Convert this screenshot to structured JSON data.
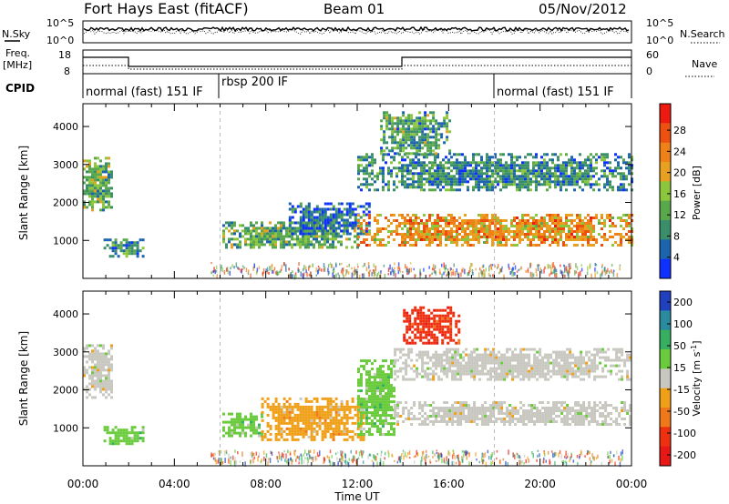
{
  "header": {
    "station": "Fort Hays East (fitACF)",
    "beam": "Beam 01",
    "date": "05/Nov/2012"
  },
  "noise_panel": {
    "left_label": "N.Sky",
    "left_ticks": [
      "10^5",
      "10^0"
    ],
    "right_ticks": [
      "10^5",
      "10^0"
    ],
    "right_label": "N.Search"
  },
  "freq_panel": {
    "left_label_1": "Freq.",
    "left_label_2": "[MHz]",
    "left_ticks": [
      "18",
      "8"
    ],
    "right_ticks": [
      "60",
      "0"
    ],
    "right_label": "Nave"
  },
  "cpid": {
    "label": "CPID",
    "segments": [
      {
        "name": "normal (fast) 151 IF",
        "start_hour": 0,
        "end_hour": 6
      },
      {
        "name": "rbsp 200 IF",
        "start_hour": 6,
        "end_hour": 18
      },
      {
        "name": "normal (fast) 151 IF",
        "start_hour": 18,
        "end_hour": 24
      }
    ]
  },
  "colors": {
    "power_scale": [
      "#1030ff",
      "#1c64ad",
      "#3a8f6a",
      "#5aa84c",
      "#8cc63c",
      "#e8a020",
      "#f08018",
      "#ee5010",
      "#ee1a10"
    ],
    "velocity_scale": [
      "#2040c0",
      "#2a8aa0",
      "#36b060",
      "#6acc3c",
      "#c8c8c0",
      "#f0a018",
      "#f07818",
      "#ee3010",
      "#e81818"
    ]
  },
  "chart_data": [
    {
      "type": "heatmap",
      "title": "Power",
      "xlabel": "Time UT",
      "ylabel": "Slant Range [km]",
      "xlim": [
        0,
        24
      ],
      "ylim": [
        0,
        4600
      ],
      "x_ticks": [
        "00:00",
        "04:00",
        "08:00",
        "12:00",
        "16:00",
        "20:00",
        "00:00"
      ],
      "y_ticks": [
        "1000",
        "2000",
        "3000",
        "4000"
      ],
      "colorbar_label": "Power [dB]",
      "colorbar_ticks": [
        "4",
        "8",
        "12",
        "16",
        "20",
        "24",
        "28"
      ],
      "regions": [
        {
          "t0": 0.0,
          "t1": 1.3,
          "r0": 1800,
          "r1": 3200,
          "value": 16
        },
        {
          "t0": 0.9,
          "t1": 2.6,
          "r0": 600,
          "r1": 1050,
          "value": 12
        },
        {
          "t0": 6.1,
          "t1": 12.0,
          "r0": 800,
          "r1": 1500,
          "value": 16
        },
        {
          "t0": 9.0,
          "t1": 12.5,
          "r0": 1200,
          "r1": 2000,
          "value": 8
        },
        {
          "t0": 12.0,
          "t1": 24.0,
          "r0": 900,
          "r1": 1700,
          "value": 26
        },
        {
          "t0": 12.0,
          "t1": 24.0,
          "r0": 2300,
          "r1": 3300,
          "value": 12
        },
        {
          "t0": 13.0,
          "t1": 16.0,
          "r0": 3300,
          "r1": 4400,
          "value": 14
        }
      ]
    },
    {
      "type": "heatmap",
      "title": "Velocity",
      "xlabel": "Time UT",
      "ylabel": "Slant Range [km]",
      "xlim": [
        0,
        24
      ],
      "ylim": [
        0,
        4600
      ],
      "x_ticks": [
        "00:00",
        "04:00",
        "08:00",
        "12:00",
        "16:00",
        "20:00",
        "00:00"
      ],
      "y_ticks": [
        "1000",
        "2000",
        "3000",
        "4000"
      ],
      "colorbar_label": "Velocity [m s^-1]",
      "colorbar_ticks": [
        "200",
        "100",
        "50",
        "15",
        "-15",
        "-50",
        "-100",
        "-200"
      ],
      "regions": [
        {
          "t0": 0.0,
          "t1": 1.3,
          "r0": 1800,
          "r1": 3200,
          "value": 0
        },
        {
          "t0": 0.9,
          "t1": 2.6,
          "r0": 600,
          "r1": 1050,
          "value": 30
        },
        {
          "t0": 6.1,
          "t1": 7.8,
          "r0": 800,
          "r1": 1400,
          "value": 30
        },
        {
          "t0": 7.8,
          "t1": 12.3,
          "r0": 700,
          "r1": 1800,
          "value": -40
        },
        {
          "t0": 12.0,
          "t1": 13.6,
          "r0": 800,
          "r1": 2800,
          "value": 25
        },
        {
          "t0": 13.6,
          "t1": 24.0,
          "r0": 1100,
          "r1": 1700,
          "value": 0
        },
        {
          "t0": 13.6,
          "t1": 24.0,
          "r0": 2300,
          "r1": 3100,
          "value": 0
        },
        {
          "t0": 14.0,
          "t1": 16.5,
          "r0": 3200,
          "r1": 4200,
          "value": -150
        }
      ]
    }
  ]
}
